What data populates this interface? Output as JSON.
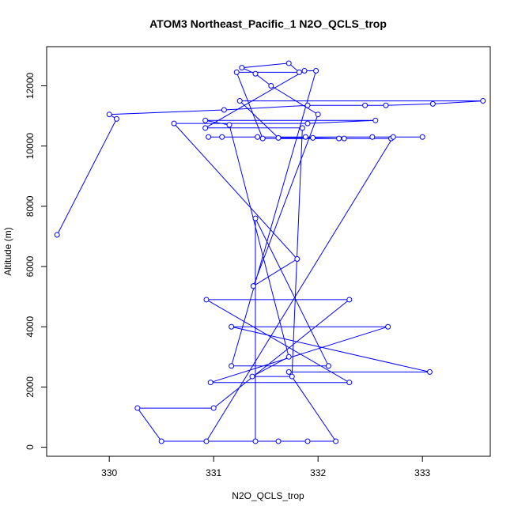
{
  "chart_data": {
    "type": "line",
    "title": "ATOM3 Northeast_Pacific_1 N2O_QCLS_trop",
    "xlabel": "N2O_QCLS_trop",
    "ylabel": "Altitude (m)",
    "xlim": [
      329.4,
      333.65
    ],
    "ylim": [
      -300,
      13300
    ],
    "xticks": [
      330,
      331,
      332,
      333
    ],
    "yticks": [
      0,
      2000,
      4000,
      6000,
      8000,
      10000,
      12000
    ],
    "grid": false,
    "line_color": "#0000ff",
    "marker": "open-circle",
    "series": [
      {
        "x": [
          329.5,
          330.07,
          330.0,
          331.1,
          331.9,
          332.45,
          332.65,
          333.1,
          333.58,
          331.25,
          331.62,
          331.95,
          332.2,
          332.25,
          332.7,
          331.47,
          331.22,
          331.82,
          331.72,
          331.27,
          331.4,
          331.55,
          332.0,
          331.38,
          331.38,
          331.8,
          330.62,
          331.9,
          332.55,
          330.92,
          331.15,
          331.72,
          331.37,
          331.75,
          331.85,
          330.92,
          331.87,
          331.98,
          331.17,
          332.1,
          331.4,
          331.4,
          330.5,
          330.27,
          331.0,
          332.3,
          330.93,
          332.3,
          330.97,
          332.67,
          331.17,
          333.07,
          331.72,
          332.17,
          331.62,
          331.9,
          330.93,
          332.72,
          331.42,
          332.52,
          331.88,
          333.0,
          331.08,
          330.95
        ],
        "y": [
          7050,
          10900,
          11050,
          11200,
          11350,
          11350,
          11350,
          11400,
          11500,
          11500,
          10270,
          10270,
          10250,
          10250,
          10250,
          10250,
          12450,
          12450,
          12750,
          12600,
          12400,
          12000,
          11050,
          5350,
          5350,
          6250,
          10750,
          10750,
          10850,
          10850,
          10700,
          3000,
          2350,
          2350,
          10600,
          10600,
          12500,
          12500,
          2700,
          2700,
          7600,
          200,
          200,
          1300,
          1300,
          4900,
          4900,
          2150,
          2150,
          4000,
          4000,
          2500,
          2500,
          200,
          200,
          200,
          200,
          10300,
          10300,
          10300,
          10300,
          10300,
          10300,
          10300
        ]
      }
    ]
  }
}
